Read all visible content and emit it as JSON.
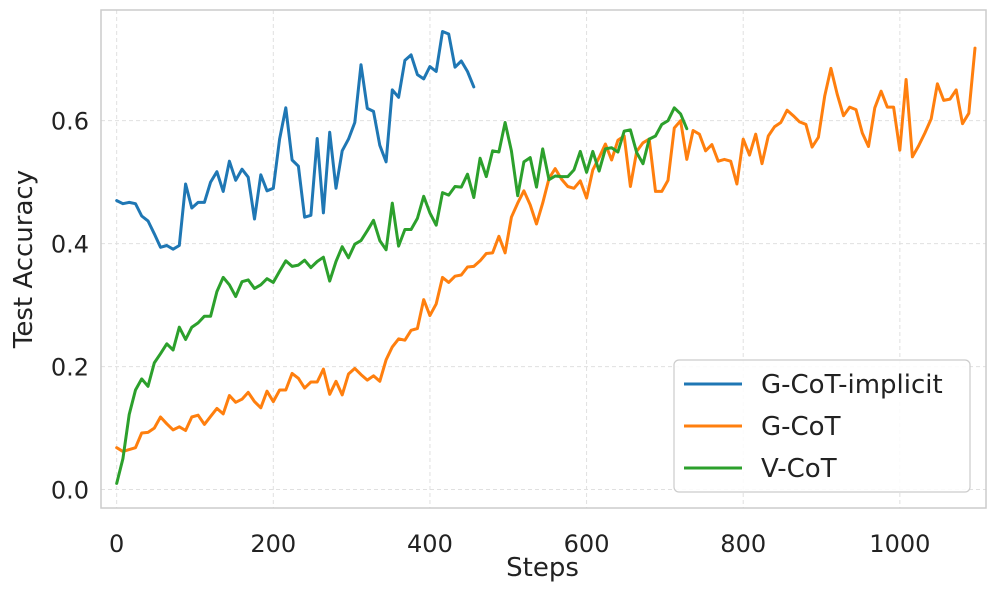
{
  "chart_data": {
    "type": "line",
    "title": "",
    "xlabel": "Steps",
    "ylabel": "Test Accuracy",
    "xlim": [
      -20,
      1110
    ],
    "ylim": [
      -0.03,
      0.78
    ],
    "xticks": [
      0,
      200,
      400,
      600,
      800,
      1000
    ],
    "xtick_labels": [
      "0",
      "200",
      "400",
      "600",
      "800",
      "1000"
    ],
    "yticks": [
      0.0,
      0.2,
      0.4,
      0.6
    ],
    "ytick_labels": [
      "0.0",
      "0.2",
      "0.4",
      "0.6"
    ],
    "grid": true,
    "legend_position": "lower-right",
    "colors": {
      "G-CoT-implicit": "#1f77b4",
      "G-CoT": "#ff7f0e",
      "V-CoT": "#2ca02c",
      "grid": "#e0e0e0",
      "frame": "#cccccc"
    },
    "series": [
      {
        "name": "G-CoT-implicit",
        "x": [
          0,
          8,
          16,
          24,
          32,
          40,
          48,
          56,
          64,
          72,
          80,
          88,
          96,
          104,
          112,
          120,
          128,
          136,
          144,
          152,
          160,
          168,
          176,
          184,
          192,
          200,
          208,
          216,
          224,
          232,
          240,
          248,
          256,
          264,
          272,
          280,
          288,
          296,
          304,
          312,
          320,
          328,
          336,
          344,
          352,
          360,
          368,
          376,
          384,
          392,
          400,
          408,
          416,
          424,
          432,
          440,
          448,
          456
        ],
        "values": [
          0.47,
          0.465,
          0.467,
          0.465,
          0.445,
          0.437,
          0.416,
          0.394,
          0.397,
          0.391,
          0.397,
          0.497,
          0.458,
          0.467,
          0.467,
          0.5,
          0.517,
          0.485,
          0.534,
          0.503,
          0.521,
          0.508,
          0.44,
          0.512,
          0.486,
          0.49,
          0.57,
          0.621,
          0.536,
          0.526,
          0.443,
          0.446,
          0.571,
          0.45,
          0.581,
          0.49,
          0.551,
          0.57,
          0.597,
          0.691,
          0.62,
          0.615,
          0.56,
          0.533,
          0.65,
          0.638,
          0.698,
          0.707,
          0.675,
          0.668,
          0.688,
          0.68,
          0.745,
          0.741,
          0.687,
          0.697,
          0.68,
          0.655
        ]
      },
      {
        "name": "G-CoT",
        "x": [
          0,
          8,
          16,
          24,
          32,
          40,
          48,
          56,
          64,
          72,
          80,
          88,
          96,
          104,
          112,
          120,
          128,
          136,
          144,
          152,
          160,
          168,
          176,
          184,
          192,
          200,
          208,
          216,
          224,
          232,
          240,
          248,
          256,
          264,
          272,
          280,
          288,
          296,
          304,
          312,
          320,
          328,
          336,
          344,
          352,
          360,
          368,
          376,
          384,
          392,
          400,
          408,
          416,
          424,
          432,
          440,
          448,
          456,
          464,
          472,
          480,
          488,
          496,
          504,
          512,
          520,
          528,
          536,
          544,
          552,
          560,
          568,
          576,
          584,
          592,
          600,
          608,
          616,
          624,
          632,
          640,
          648,
          656,
          664,
          672,
          680,
          688,
          696,
          704,
          712,
          720,
          728,
          736,
          744,
          752,
          760,
          768,
          776,
          784,
          792,
          800,
          808,
          816,
          824,
          832,
          840,
          848,
          856,
          864,
          872,
          880,
          888,
          896,
          904,
          912,
          920,
          928,
          936,
          944,
          952,
          960,
          968,
          976,
          984,
          992,
          1000,
          1008,
          1016,
          1024,
          1032,
          1040,
          1048,
          1056,
          1064,
          1072,
          1080,
          1088,
          1096
        ],
        "values": [
          0.068,
          0.062,
          0.065,
          0.068,
          0.092,
          0.093,
          0.1,
          0.118,
          0.107,
          0.097,
          0.102,
          0.096,
          0.118,
          0.121,
          0.106,
          0.119,
          0.132,
          0.123,
          0.153,
          0.142,
          0.147,
          0.158,
          0.143,
          0.133,
          0.16,
          0.143,
          0.162,
          0.162,
          0.189,
          0.181,
          0.165,
          0.175,
          0.175,
          0.196,
          0.155,
          0.176,
          0.154,
          0.188,
          0.197,
          0.187,
          0.178,
          0.185,
          0.176,
          0.211,
          0.232,
          0.245,
          0.243,
          0.259,
          0.262,
          0.309,
          0.283,
          0.302,
          0.345,
          0.337,
          0.347,
          0.349,
          0.362,
          0.363,
          0.372,
          0.384,
          0.385,
          0.412,
          0.385,
          0.443,
          0.466,
          0.486,
          0.463,
          0.432,
          0.466,
          0.506,
          0.522,
          0.505,
          0.493,
          0.49,
          0.502,
          0.474,
          0.52,
          0.54,
          0.562,
          0.536,
          0.568,
          0.575,
          0.493,
          0.55,
          0.564,
          0.57,
          0.485,
          0.485,
          0.503,
          0.588,
          0.6,
          0.537,
          0.584,
          0.578,
          0.551,
          0.561,
          0.534,
          0.537,
          0.534,
          0.497,
          0.57,
          0.544,
          0.578,
          0.53,
          0.575,
          0.59,
          0.597,
          0.617,
          0.608,
          0.598,
          0.594,
          0.557,
          0.573,
          0.64,
          0.685,
          0.643,
          0.608,
          0.622,
          0.618,
          0.58,
          0.558,
          0.621,
          0.648,
          0.622,
          0.622,
          0.552,
          0.667,
          0.541,
          0.559,
          0.58,
          0.603,
          0.66,
          0.633,
          0.635,
          0.65,
          0.595,
          0.612,
          0.718
        ]
      },
      {
        "name": "V-CoT",
        "x": [
          0,
          8,
          16,
          24,
          32,
          40,
          48,
          56,
          64,
          72,
          80,
          88,
          96,
          104,
          112,
          120,
          128,
          136,
          144,
          152,
          160,
          168,
          176,
          184,
          192,
          200,
          208,
          216,
          224,
          232,
          240,
          248,
          256,
          264,
          272,
          280,
          288,
          296,
          304,
          312,
          320,
          328,
          336,
          344,
          352,
          360,
          368,
          376,
          384,
          392,
          400,
          408,
          416,
          424,
          432,
          440,
          448,
          456,
          464,
          472,
          480,
          488,
          496,
          504,
          512,
          520,
          528,
          536,
          544,
          552,
          560,
          568,
          576,
          584,
          592,
          600,
          608,
          616,
          624,
          632,
          640,
          648,
          656,
          664,
          672,
          680,
          688,
          696,
          704,
          712,
          720,
          728
        ],
        "values": [
          0.01,
          0.05,
          0.122,
          0.162,
          0.18,
          0.168,
          0.206,
          0.221,
          0.237,
          0.227,
          0.264,
          0.244,
          0.264,
          0.271,
          0.282,
          0.282,
          0.322,
          0.345,
          0.333,
          0.314,
          0.338,
          0.341,
          0.327,
          0.333,
          0.343,
          0.337,
          0.355,
          0.372,
          0.363,
          0.365,
          0.373,
          0.361,
          0.371,
          0.378,
          0.339,
          0.371,
          0.395,
          0.377,
          0.399,
          0.405,
          0.421,
          0.438,
          0.405,
          0.39,
          0.466,
          0.396,
          0.423,
          0.423,
          0.441,
          0.477,
          0.45,
          0.43,
          0.483,
          0.479,
          0.493,
          0.492,
          0.513,
          0.475,
          0.539,
          0.509,
          0.551,
          0.549,
          0.597,
          0.551,
          0.478,
          0.533,
          0.54,
          0.492,
          0.554,
          0.504,
          0.51,
          0.509,
          0.509,
          0.52,
          0.55,
          0.516,
          0.55,
          0.518,
          0.554,
          0.556,
          0.549,
          0.583,
          0.585,
          0.548,
          0.53,
          0.57,
          0.575,
          0.594,
          0.6,
          0.621,
          0.611,
          0.587
        ]
      }
    ]
  }
}
